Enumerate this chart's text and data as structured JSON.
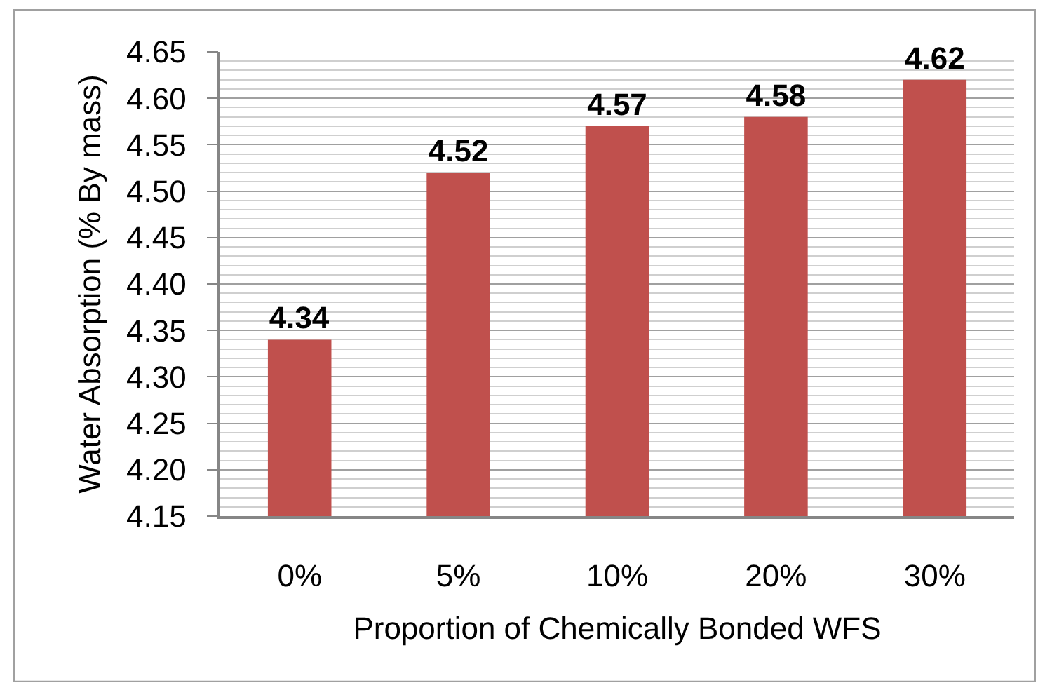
{
  "chart_data": {
    "type": "bar",
    "xlabel": "Proportion of Chemically Bonded WFS",
    "ylabel": "Water Absorption (% By mass)",
    "categories": [
      "0%",
      "5%",
      "10%",
      "20%",
      "30%"
    ],
    "values": [
      4.34,
      4.52,
      4.57,
      4.58,
      4.62
    ],
    "color": "#c0504d",
    "ylim": [
      4.15,
      4.65
    ],
    "yticks": [
      {
        "value": 4.15,
        "label": "4.15"
      },
      {
        "value": 4.2,
        "label": "4.20"
      },
      {
        "value": 4.25,
        "label": "4.25"
      },
      {
        "value": 4.3,
        "label": "4.30"
      },
      {
        "value": 4.35,
        "label": "4.35"
      },
      {
        "value": 4.4,
        "label": "4.40"
      },
      {
        "value": 4.45,
        "label": "4.45"
      },
      {
        "value": 4.5,
        "label": "4.50"
      },
      {
        "value": 4.55,
        "label": "4.55"
      },
      {
        "value": 4.6,
        "label": "4.60"
      },
      {
        "value": 4.65,
        "label": "4.65"
      }
    ],
    "grid": "y",
    "data_labels": true
  }
}
